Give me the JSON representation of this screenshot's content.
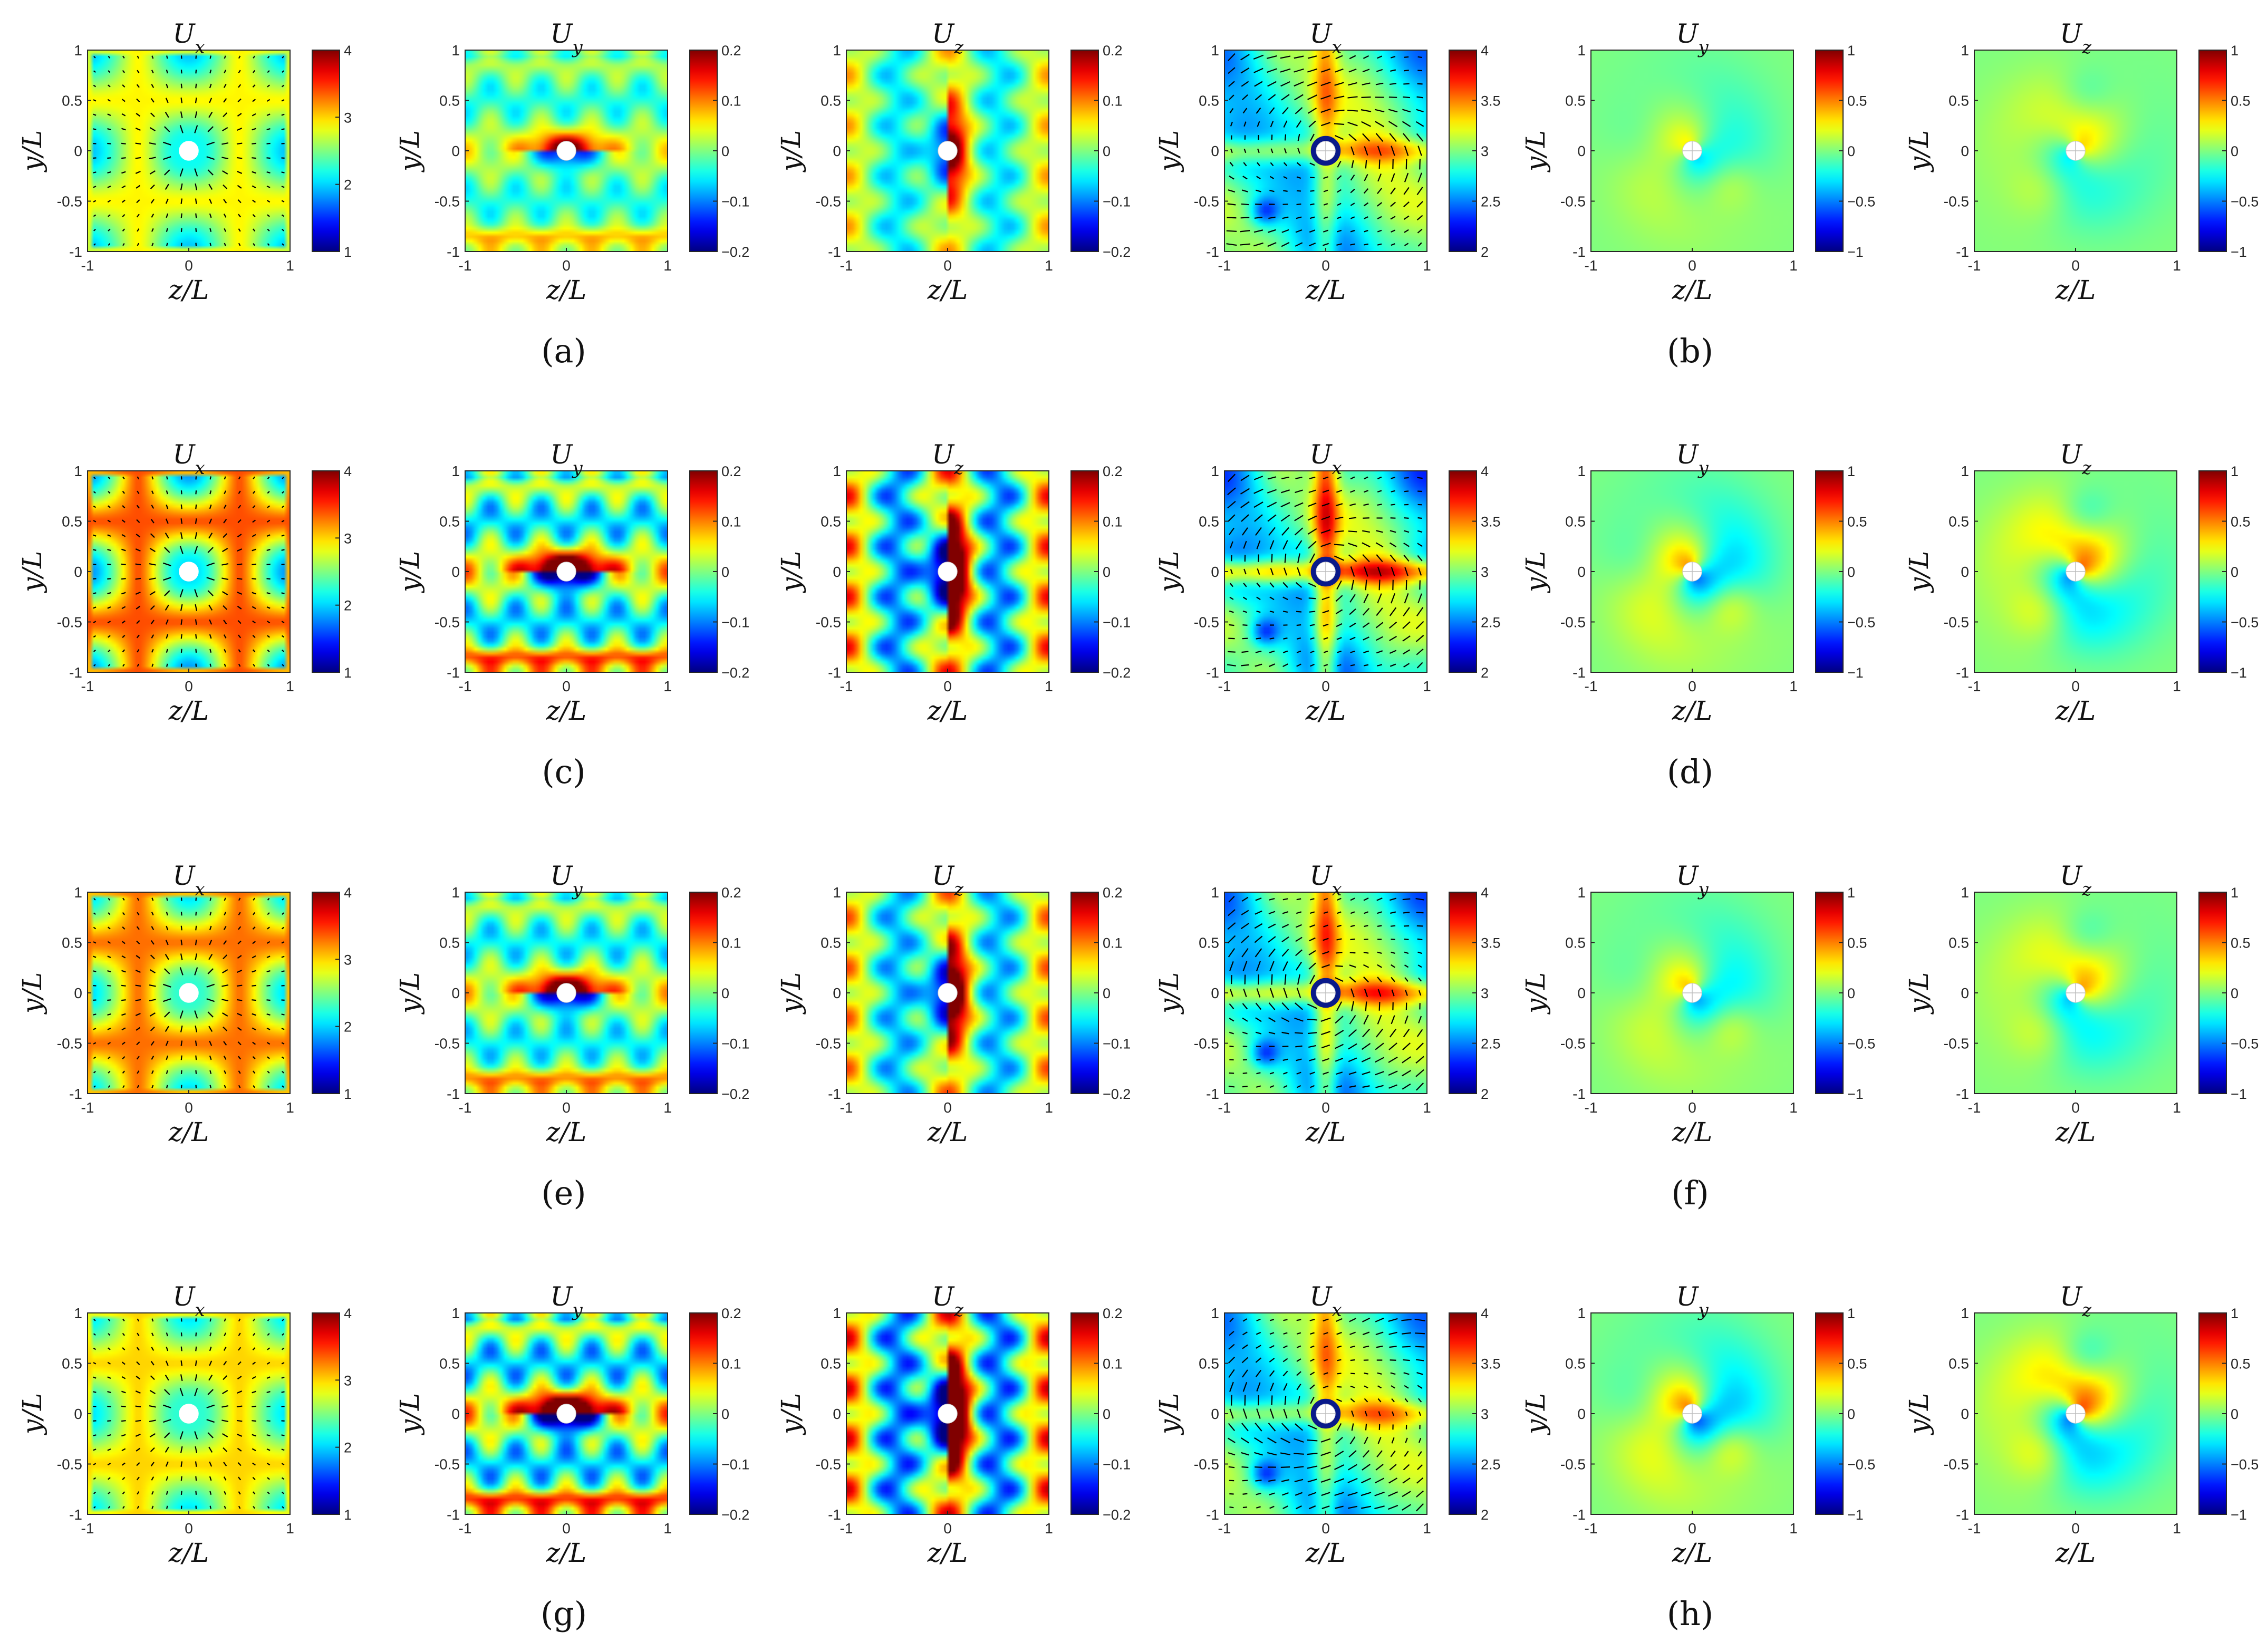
{
  "figure": {
    "captions": [
      "(a)",
      "(b)",
      "(c)",
      "(d)",
      "(e)",
      "(f)",
      "(g)",
      "(h)"
    ]
  },
  "chart_data": {
    "type": "heatmap",
    "description_of_grid": "4 rows x 6 panels of velocity-component contour maps on z/L-y/L plane; each row = two sub-figures of three panels (Ux, Uy, Uz)",
    "panel_titles": [
      "Ux",
      "Uy",
      "Uz",
      "Ux",
      "Uy",
      "Uz"
    ],
    "xlabel": "z/L",
    "ylabel": "y/L",
    "xlim": [
      -1,
      1
    ],
    "ylim": [
      -1,
      1
    ],
    "xticks": [
      "-1",
      "0",
      "1"
    ],
    "yticks": [
      "-1",
      "-0.5",
      "0",
      "0.5",
      "1"
    ],
    "colormap": "jet",
    "colorbars": [
      {
        "field": "Ux",
        "range": [
          1,
          4
        ],
        "ticks": [
          "1",
          "2",
          "3",
          "4"
        ]
      },
      {
        "field": "Uy",
        "range": [
          -0.2,
          0.2
        ],
        "ticks": [
          "-0.2",
          "-0.1",
          "0",
          "0.1",
          "0.2"
        ]
      },
      {
        "field": "Uz",
        "range": [
          -0.2,
          0.2
        ],
        "ticks": [
          "-0.2",
          "-0.1",
          "0",
          "0.1",
          "0.2"
        ]
      },
      {
        "field": "Ux",
        "range": [
          2,
          4
        ],
        "ticks": [
          "2",
          "2.5",
          "3",
          "3.5",
          "4"
        ]
      },
      {
        "field": "Uy",
        "range": [
          -1,
          1
        ],
        "ticks": [
          "-1",
          "-0.5",
          "0",
          "0.5",
          "1"
        ]
      },
      {
        "field": "Uz",
        "range": [
          -1,
          1
        ],
        "ticks": [
          "-1",
          "-0.5",
          "0",
          "0.5",
          "1"
        ]
      }
    ],
    "cylinder_marker": {
      "center": [
        0,
        0
      ],
      "radius_fraction_of_L": 0.1
    },
    "panels_with_vector_arrows": [
      0,
      3
    ],
    "rows": [
      {
        "captions": [
          "(a)",
          "(b)"
        ],
        "ux_mean_level": 2.9,
        "lattice_contrast": 0.6,
        "uy_uz_amplitude": 0.6,
        "wake_asymmetry": "moderate"
      },
      {
        "captions": [
          "(c)",
          "(d)"
        ],
        "ux_mean_level": 3.4,
        "lattice_contrast": 1.0,
        "uy_uz_amplitude": 1.0,
        "wake_asymmetry": "moderate"
      },
      {
        "captions": [
          "(e)",
          "(f)"
        ],
        "ux_mean_level": 3.3,
        "lattice_contrast": 0.8,
        "uy_uz_amplitude": 0.8,
        "wake_asymmetry": "moderate"
      },
      {
        "captions": [
          "(g)",
          "(h)"
        ],
        "ux_mean_level": 3.0,
        "lattice_contrast": 0.6,
        "uy_uz_amplitude": 1.1,
        "wake_asymmetry": "moderate"
      }
    ]
  }
}
